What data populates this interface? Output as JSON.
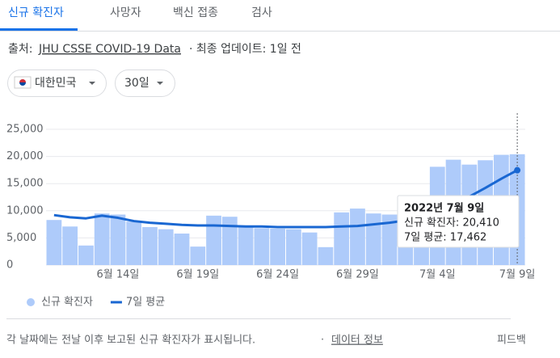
{
  "tabs": [
    "신규 확진자",
    "사망자",
    "백신 접종",
    "검사"
  ],
  "source": {
    "label": "출처:",
    "link": "JHU CSSE COVID-19 Data",
    "updated": "· 최종 업데이트: 1일 전"
  },
  "filters": [
    "대한민국",
    "30일"
  ],
  "chart_data": {
    "type": "bar",
    "categories": [
      null,
      null,
      null,
      null,
      "6월 14일",
      null,
      null,
      null,
      null,
      "6월 19일",
      null,
      null,
      null,
      null,
      "6월 24일",
      null,
      null,
      null,
      null,
      "6월 29일",
      null,
      null,
      null,
      null,
      "7월 4일",
      null,
      null,
      null,
      null,
      "7월 9일"
    ],
    "series": [
      {
        "name": "신규 확진자",
        "type": "bar",
        "color": "#aecbfa",
        "values": [
          8300,
          7100,
          3600,
          9500,
          9300,
          8000,
          7000,
          6600,
          5800,
          3400,
          9100,
          8900,
          7000,
          6800,
          6700,
          6600,
          6000,
          3300,
          9700,
          10400,
          9500,
          9300,
          10600,
          10000,
          18100,
          19400,
          18500,
          19300,
          20300,
          20410
        ]
      },
      {
        "name": "7일 평균",
        "type": "line",
        "color": "#1967d2",
        "values": [
          9200,
          8800,
          8600,
          9100,
          8700,
          8100,
          7800,
          7600,
          7400,
          7300,
          7300,
          7200,
          7100,
          7100,
          7000,
          7000,
          7000,
          7000,
          7100,
          7200,
          7500,
          7800,
          8200,
          8700,
          9900,
          11200,
          12600,
          14200,
          15900,
          17462
        ]
      }
    ],
    "ylim": [
      0,
      25000
    ],
    "yticks": [
      0,
      {
        "value": 5000,
        "label": "5,000"
      },
      {
        "value": 10000,
        "label": "10,000"
      },
      {
        "value": 15000,
        "label": "15,000"
      },
      {
        "value": 20000,
        "label": "20,000"
      },
      {
        "value": 25000,
        "label": "25,000"
      }
    ],
    "grid": true,
    "tooltip": [
      "2022년 7월 9일",
      "신규 확진자: 20,410",
      "7일 평균: 17,462"
    ]
  },
  "footer": {
    "note": "각 날짜에는 전날 이후 보고된 신규 확진자가 표시됩니다.",
    "separator": "·",
    "link": "데이터 정보",
    "feedback": "피드백"
  }
}
